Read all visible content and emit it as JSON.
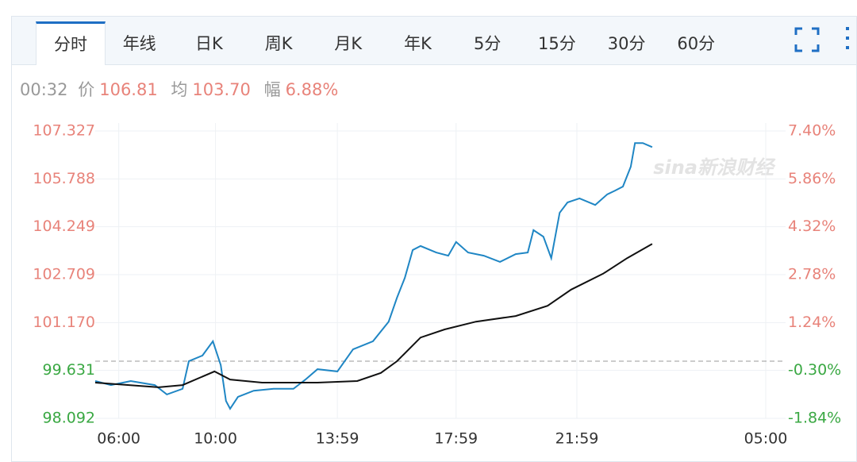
{
  "tabs": [
    "分时",
    "年线",
    "日K",
    "周K",
    "月K",
    "年K",
    "5分",
    "15分",
    "30分",
    "60分"
  ],
  "active_tab": 0,
  "info": {
    "time": "00:32",
    "price_label": "价",
    "price": "106.81",
    "avg_label": "均",
    "avg": "103.70",
    "change_label": "幅",
    "change": "6.88%"
  },
  "chart_data": {
    "type": "line",
    "watermark": "sina新浪财经",
    "xlim": [
      0,
      1320
    ],
    "xticks": [
      {
        "value": 45,
        "label": "06:00"
      },
      {
        "value": 230,
        "label": "10:00"
      },
      {
        "value": 463,
        "label": "13:59"
      },
      {
        "value": 690,
        "label": "17:59"
      },
      {
        "value": 921,
        "label": "21:59"
      },
      {
        "value": 1282,
        "label": "05:00"
      }
    ],
    "ylim": [
      98.092,
      107.327
    ],
    "yticks": [
      {
        "value": 107.327,
        "label": "107.327"
      },
      {
        "value": 105.788,
        "label": "105.788"
      },
      {
        "value": 104.249,
        "label": "104.249"
      },
      {
        "value": 102.709,
        "label": "102.709"
      },
      {
        "value": 101.17,
        "label": "101.170"
      },
      {
        "value": 99.631,
        "label": "99.631"
      },
      {
        "value": 98.092,
        "label": "98.092"
      }
    ],
    "y2lim": [
      -1.84,
      7.4
    ],
    "y2ticks": [
      {
        "value": 7.4,
        "label": "7.40%"
      },
      {
        "value": 5.86,
        "label": "5.86%"
      },
      {
        "value": 4.32,
        "label": "4.32%"
      },
      {
        "value": 2.78,
        "label": "2.78%"
      },
      {
        "value": 1.24,
        "label": "1.24%"
      },
      {
        "value": -0.3,
        "label": "-0.30%"
      },
      {
        "value": -1.84,
        "label": "-1.84%"
      }
    ],
    "reference": 99.93,
    "up_color": "#e8837a",
    "down_color": "#3aa843",
    "grid": true,
    "series": [
      {
        "name": "价",
        "color": "#1f86c4",
        "x": [
          0,
          30,
          68,
          114,
          137,
          167,
          179,
          205,
          225,
          240,
          250,
          258,
          273,
          303,
          341,
          379,
          402,
          425,
          463,
          493,
          531,
          561,
          577,
          592,
          607,
          622,
          652,
          675,
          690,
          713,
          743,
          774,
          804,
          827,
          838,
          857,
          872,
          888,
          903,
          926,
          956,
          979,
          994,
          1009,
          1024,
          1032,
          1047,
          1065
        ],
        "values": [
          99.29,
          99.16,
          99.29,
          99.16,
          98.86,
          99.04,
          99.93,
          100.11,
          100.57,
          99.8,
          98.65,
          98.4,
          98.78,
          98.98,
          99.04,
          99.04,
          99.34,
          99.67,
          99.6,
          100.31,
          100.57,
          101.2,
          101.97,
          102.61,
          103.5,
          103.63,
          103.42,
          103.32,
          103.76,
          103.42,
          103.32,
          103.12,
          103.37,
          103.42,
          104.14,
          103.93,
          103.24,
          104.7,
          105.03,
          105.16,
          104.95,
          105.29,
          105.41,
          105.54,
          106.18,
          106.94,
          106.94,
          106.81
        ]
      },
      {
        "name": "均",
        "color": "#111111",
        "x": [
          0,
          121,
          167,
          228,
          258,
          319,
          425,
          501,
          546,
          577,
          622,
          668,
          728,
          804,
          865,
          910,
          971,
          1017,
          1065
        ],
        "values": [
          99.24,
          99.09,
          99.16,
          99.6,
          99.34,
          99.24,
          99.24,
          99.29,
          99.55,
          99.93,
          100.69,
          100.95,
          101.2,
          101.38,
          101.71,
          102.23,
          102.74,
          103.24,
          103.7
        ]
      }
    ]
  }
}
